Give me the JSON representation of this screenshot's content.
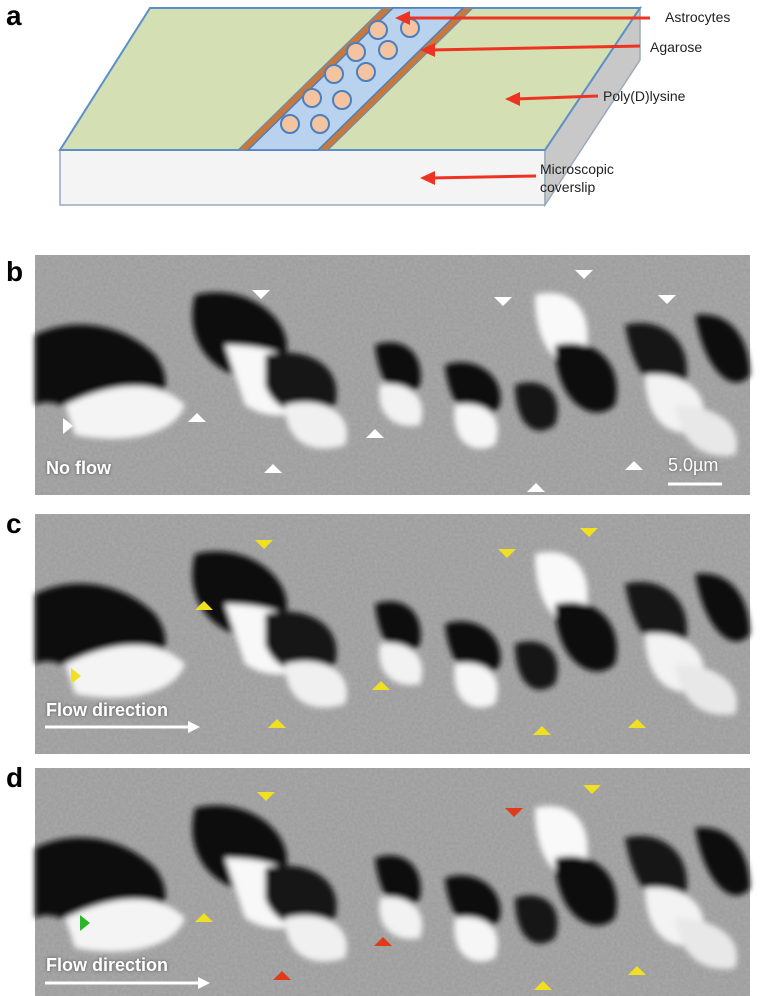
{
  "panels": [
    {
      "label": "a",
      "annotations": [
        "Astrocytes",
        "Agarose",
        "Poly(D)lysine",
        "Microscopic\ncoverslip"
      ]
    },
    {
      "label": "b",
      "caption": "No flow",
      "scale_bar": "5.0µm"
    },
    {
      "label": "c",
      "caption": "Flow direction"
    },
    {
      "label": "d",
      "caption": "Flow direction"
    }
  ]
}
